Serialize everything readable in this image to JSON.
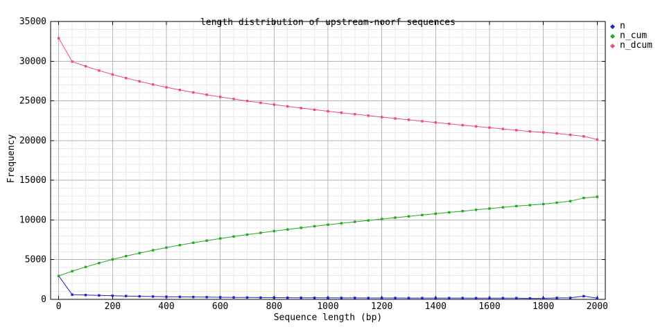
{
  "chart_data": {
    "type": "line",
    "title": "length distribution of upstream-noorf sequences",
    "xlabel": "Sequence length (bp)",
    "ylabel": "Frequency",
    "xlim": [
      -30,
      2030
    ],
    "ylim": [
      0,
      35000
    ],
    "x_ticks": [
      0,
      200,
      400,
      600,
      800,
      1000,
      1200,
      1400,
      1600,
      1800,
      2000
    ],
    "y_ticks": [
      0,
      5000,
      10000,
      15000,
      20000,
      25000,
      30000,
      35000
    ],
    "x_minor_step": 50,
    "y_minor_step": 1000,
    "grid": true,
    "legend_position": "outside-top-right",
    "x": [
      0,
      50,
      100,
      150,
      200,
      250,
      300,
      350,
      400,
      450,
      500,
      550,
      600,
      650,
      700,
      750,
      800,
      850,
      900,
      950,
      1000,
      1050,
      1100,
      1150,
      1200,
      1250,
      1300,
      1350,
      1400,
      1450,
      1500,
      1550,
      1600,
      1650,
      1700,
      1750,
      1800,
      1850,
      1900,
      1950,
      2000
    ],
    "series": [
      {
        "name": "n",
        "color": "#2222cc",
        "values": [
          2950,
          591,
          539,
          494,
          453,
          418,
          386,
          358,
          334,
          312,
          293,
          276,
          262,
          248,
          237,
          227,
          218,
          210,
          203,
          196,
          191,
          186,
          182,
          178,
          175,
          172,
          169,
          167,
          165,
          163,
          162,
          160,
          159,
          158,
          157,
          120,
          130,
          180,
          190,
          400,
          150
        ]
      },
      {
        "name": "n_cum",
        "color": "#22aa22",
        "values": [
          2950,
          3541,
          4080,
          4574,
          5027,
          5445,
          5831,
          6189,
          6523,
          6835,
          7128,
          7404,
          7666,
          7914,
          8151,
          8378,
          8596,
          8806,
          9009,
          9205,
          9396,
          9582,
          9764,
          9942,
          10117,
          10289,
          10458,
          10625,
          10790,
          10953,
          11115,
          11275,
          11434,
          11592,
          11749,
          11869,
          11999,
          12179,
          12369,
          12769,
          12919
        ]
      },
      {
        "name": "n_dcum",
        "color": "#ee4c72",
        "values": [
          32900,
          29950,
          29359,
          28820,
          28326,
          27873,
          27455,
          27069,
          26711,
          26377,
          26065,
          25772,
          25496,
          25234,
          24986,
          24749,
          24522,
          24304,
          24094,
          23891,
          23695,
          23504,
          23318,
          23136,
          22958,
          22783,
          22611,
          22442,
          22275,
          22110,
          21947,
          21785,
          21625,
          21466,
          21308,
          21151,
          21031,
          20901,
          20721,
          20531,
          20131
        ]
      }
    ]
  },
  "colors": {
    "background": "#ffffff",
    "border": "#000000",
    "grid_major": "#b4b4b4",
    "grid_minor": "#e9e9e9",
    "text": "#000000"
  }
}
